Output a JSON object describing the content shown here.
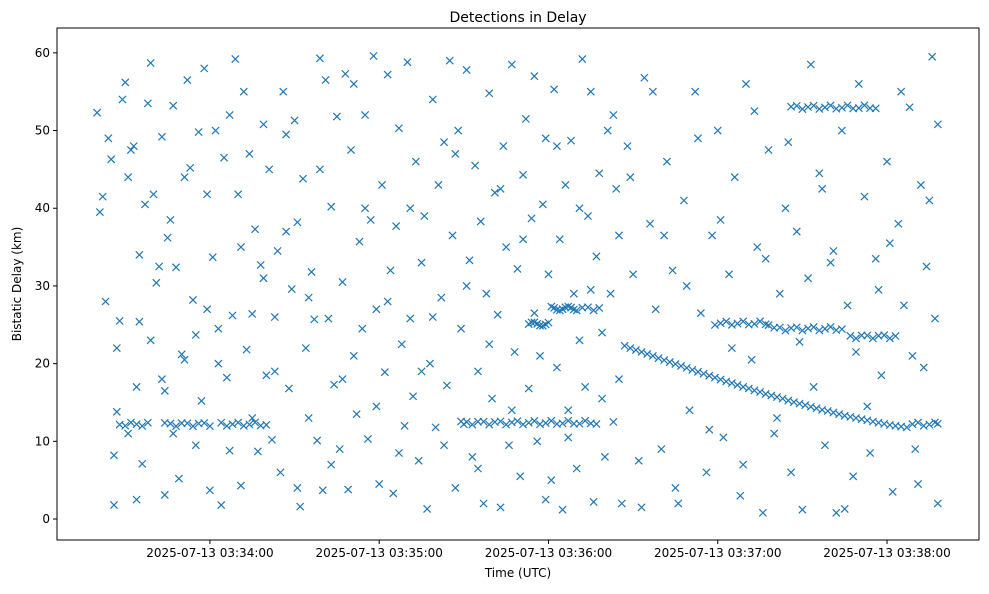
{
  "chart_data": {
    "type": "scatter",
    "title": "Detections in Delay",
    "xlabel": "Time (UTC)",
    "ylabel": "Bistatic Delay (km)",
    "x_units": "seconds after 2025-07-13 03:33:00 UTC",
    "xlim": [
      5.8,
      332.6
    ],
    "ylim": [
      -2.7,
      63.2
    ],
    "xticks": [
      {
        "value": 60,
        "label": "2025-07-13 03:34:00"
      },
      {
        "value": 120,
        "label": "2025-07-13 03:35:00"
      },
      {
        "value": 180,
        "label": "2025-07-13 03:36:00"
      },
      {
        "value": 240,
        "label": "2025-07-13 03:37:00"
      },
      {
        "value": 300,
        "label": "2025-07-13 03:38:00"
      }
    ],
    "yticks": [
      0,
      10,
      20,
      30,
      40,
      50,
      60
    ],
    "grid": false,
    "marker": "x",
    "color": "#1f77b4",
    "tracks": [
      {
        "y": 12.2,
        "x": [
          28,
          30,
          32,
          34,
          36,
          38,
          44,
          46,
          48,
          50,
          52,
          54,
          56,
          58,
          60,
          64,
          66,
          68,
          70,
          72,
          74,
          76,
          78,
          80
        ]
      },
      {
        "y": 12.4,
        "x": [
          149,
          151,
          153,
          155,
          157,
          159,
          161,
          163,
          165,
          167,
          169,
          171,
          173,
          175,
          177,
          179,
          181,
          183,
          185,
          187,
          189,
          191,
          193,
          195,
          197
        ]
      },
      {
        "y": 25.1,
        "x": [
          173,
          174,
          175,
          176,
          177,
          178,
          179,
          180
        ]
      },
      {
        "y": 27.1,
        "x": [
          181,
          182,
          183,
          184,
          185,
          186,
          187,
          188,
          189,
          190,
          192,
          194,
          196,
          198
        ]
      },
      {
        "y": 25.2,
        "x": [
          239,
          241,
          243,
          245,
          247,
          249,
          251,
          253,
          255,
          257,
          258
        ]
      },
      {
        "y": 24.5,
        "x": [
          260,
          262,
          264,
          266,
          268,
          270,
          272,
          274,
          276,
          278,
          280,
          282,
          284
        ]
      },
      {
        "y": 23.5,
        "x": [
          287,
          289,
          291,
          293,
          295,
          297,
          299,
          301,
          303
        ]
      },
      {
        "y": 53.0,
        "x": [
          266,
          268,
          270,
          272,
          274,
          276,
          278,
          280,
          282,
          284,
          286,
          288,
          290,
          292,
          294,
          296
        ]
      },
      {
        "y": 12.2,
        "x": [
          309,
          311,
          313,
          315,
          317,
          318
        ]
      }
    ],
    "curved_track": [
      [
        207,
        22.3
      ],
      [
        209,
        22.0
      ],
      [
        211,
        21.75
      ],
      [
        213,
        21.5
      ],
      [
        215,
        21.24
      ],
      [
        217,
        21.0
      ],
      [
        219,
        20.7
      ],
      [
        221,
        20.45
      ],
      [
        223,
        20.2
      ],
      [
        225,
        19.95
      ],
      [
        227,
        19.7
      ],
      [
        229,
        19.45
      ],
      [
        231,
        19.2
      ],
      [
        233,
        18.95
      ],
      [
        235,
        18.7
      ],
      [
        237,
        18.45
      ],
      [
        239,
        18.2
      ],
      [
        241,
        17.95
      ],
      [
        243,
        17.7
      ],
      [
        245,
        17.5
      ],
      [
        247,
        17.25
      ],
      [
        249,
        17.0
      ],
      [
        251,
        16.8
      ],
      [
        253,
        16.55
      ],
      [
        255,
        16.35
      ],
      [
        257,
        16.1
      ],
      [
        259,
        15.9
      ],
      [
        261,
        15.7
      ],
      [
        263,
        15.5
      ],
      [
        265,
        15.25
      ],
      [
        267,
        15.05
      ],
      [
        269,
        14.85
      ],
      [
        271,
        14.65
      ],
      [
        273,
        14.45
      ],
      [
        275,
        14.25
      ],
      [
        277,
        14.05
      ],
      [
        279,
        13.9
      ],
      [
        281,
        13.7
      ],
      [
        283,
        13.5
      ],
      [
        285,
        13.3
      ],
      [
        287,
        13.15
      ],
      [
        289,
        13.0
      ],
      [
        291,
        12.85
      ],
      [
        293,
        12.7
      ],
      [
        295,
        12.55
      ],
      [
        297,
        12.4
      ],
      [
        299,
        12.25
      ],
      [
        301,
        12.1
      ],
      [
        303,
        12.0
      ],
      [
        305,
        11.9
      ],
      [
        307,
        11.8
      ]
    ],
    "points": [
      [
        20,
        52.3
      ],
      [
        21,
        39.5
      ],
      [
        22,
        41.5
      ],
      [
        23,
        28.0
      ],
      [
        24,
        49.0
      ],
      [
        25,
        46.3
      ],
      [
        26,
        8.2
      ],
      [
        26,
        1.8
      ],
      [
        27,
        13.8
      ],
      [
        28,
        25.5
      ],
      [
        29,
        54.0
      ],
      [
        30,
        56.2
      ],
      [
        31,
        44.0
      ],
      [
        32,
        47.5
      ],
      [
        33,
        48.0
      ],
      [
        34,
        17.0
      ],
      [
        34,
        2.5
      ],
      [
        35,
        25.4
      ],
      [
        36,
        7.1
      ],
      [
        37,
        40.5
      ],
      [
        38,
        53.5
      ],
      [
        39,
        58.7
      ],
      [
        40,
        41.8
      ],
      [
        41,
        30.4
      ],
      [
        42,
        32.5
      ],
      [
        43,
        49.2
      ],
      [
        44,
        16.5
      ],
      [
        44,
        3.1
      ],
      [
        45,
        36.2
      ],
      [
        46,
        38.5
      ],
      [
        47,
        53.2
      ],
      [
        48,
        32.4
      ],
      [
        49,
        5.2
      ],
      [
        50,
        21.2
      ],
      [
        51,
        44.0
      ],
      [
        52,
        56.5
      ],
      [
        53,
        45.2
      ],
      [
        54,
        28.2
      ],
      [
        55,
        23.7
      ],
      [
        56,
        49.8
      ],
      [
        57,
        15.2
      ],
      [
        58,
        58.0
      ],
      [
        59,
        41.8
      ],
      [
        60,
        3.7
      ],
      [
        61,
        33.7
      ],
      [
        62,
        50.0
      ],
      [
        63,
        24.5
      ],
      [
        64,
        1.8
      ],
      [
        65,
        46.5
      ],
      [
        66,
        18.2
      ],
      [
        67,
        8.8
      ],
      [
        68,
        26.2
      ],
      [
        69,
        59.2
      ],
      [
        70,
        41.8
      ],
      [
        71,
        4.3
      ],
      [
        72,
        55.0
      ],
      [
        73,
        21.8
      ],
      [
        74,
        47.0
      ],
      [
        75,
        26.4
      ],
      [
        76,
        37.3
      ],
      [
        77,
        8.7
      ],
      [
        78,
        32.7
      ],
      [
        79,
        50.8
      ],
      [
        80,
        18.5
      ],
      [
        81,
        45.0
      ],
      [
        82,
        10.2
      ],
      [
        83,
        26.0
      ],
      [
        84,
        34.5
      ],
      [
        85,
        6.0
      ],
      [
        86,
        55.0
      ],
      [
        87,
        49.5
      ],
      [
        88,
        16.8
      ],
      [
        89,
        29.6
      ],
      [
        90,
        51.3
      ],
      [
        91,
        38.2
      ],
      [
        92,
        1.6
      ],
      [
        93,
        43.8
      ],
      [
        94,
        22.0
      ],
      [
        95,
        13.0
      ],
      [
        96,
        31.8
      ],
      [
        97,
        25.7
      ],
      [
        98,
        10.1
      ],
      [
        99,
        59.3
      ],
      [
        100,
        3.7
      ],
      [
        101,
        56.5
      ],
      [
        102,
        25.8
      ],
      [
        103,
        40.2
      ],
      [
        104,
        17.3
      ],
      [
        105,
        51.8
      ],
      [
        106,
        9.0
      ],
      [
        107,
        30.5
      ],
      [
        108,
        57.3
      ],
      [
        109,
        3.8
      ],
      [
        110,
        47.5
      ],
      [
        111,
        21.0
      ],
      [
        112,
        13.5
      ],
      [
        113,
        35.7
      ],
      [
        114,
        24.5
      ],
      [
        115,
        52.0
      ],
      [
        116,
        10.3
      ],
      [
        117,
        38.5
      ],
      [
        118,
        59.6
      ],
      [
        119,
        27.0
      ],
      [
        120,
        4.5
      ],
      [
        121,
        43.0
      ],
      [
        122,
        18.9
      ],
      [
        123,
        57.2
      ],
      [
        124,
        32.0
      ],
      [
        125,
        3.3
      ],
      [
        126,
        37.7
      ],
      [
        127,
        50.3
      ],
      [
        128,
        22.5
      ],
      [
        129,
        12.0
      ],
      [
        130,
        58.8
      ],
      [
        131,
        25.8
      ],
      [
        132,
        15.8
      ],
      [
        133,
        46.0
      ],
      [
        134,
        7.5
      ],
      [
        135,
        33.0
      ],
      [
        136,
        39.0
      ],
      [
        137,
        1.3
      ],
      [
        138,
        20.0
      ],
      [
        139,
        54.0
      ],
      [
        140,
        11.8
      ],
      [
        141,
        43.0
      ],
      [
        142,
        28.5
      ],
      [
        143,
        48.5
      ],
      [
        144,
        17.2
      ],
      [
        145,
        59.0
      ],
      [
        146,
        36.5
      ],
      [
        147,
        4.0
      ],
      [
        148,
        50.0
      ],
      [
        149,
        24.5
      ],
      [
        150,
        12.2
      ],
      [
        151,
        57.8
      ],
      [
        152,
        33.3
      ],
      [
        153,
        8.0
      ],
      [
        154,
        45.5
      ],
      [
        155,
        19.0
      ],
      [
        156,
        38.3
      ],
      [
        157,
        2.0
      ],
      [
        158,
        29.0
      ],
      [
        159,
        54.8
      ],
      [
        160,
        15.5
      ],
      [
        161,
        42.0
      ],
      [
        162,
        26.3
      ],
      [
        163,
        1.5
      ],
      [
        164,
        48.0
      ],
      [
        165,
        35.0
      ],
      [
        166,
        9.5
      ],
      [
        167,
        58.5
      ],
      [
        168,
        21.5
      ],
      [
        169,
        32.2
      ],
      [
        170,
        5.5
      ],
      [
        171,
        44.3
      ],
      [
        172,
        51.5
      ],
      [
        173,
        16.8
      ],
      [
        174,
        38.7
      ],
      [
        175,
        57.0
      ],
      [
        176,
        10.0
      ],
      [
        177,
        21.0
      ],
      [
        178,
        40.5
      ],
      [
        179,
        49.0
      ],
      [
        180,
        31.5
      ],
      [
        181,
        5.0
      ],
      [
        182,
        55.3
      ],
      [
        183,
        19.5
      ],
      [
        184,
        36.0
      ],
      [
        185,
        1.2
      ],
      [
        186,
        43.0
      ],
      [
        187,
        14.0
      ],
      [
        188,
        48.7
      ],
      [
        189,
        29.0
      ],
      [
        190,
        6.5
      ],
      [
        191,
        23.0
      ],
      [
        192,
        59.2
      ],
      [
        193,
        17.0
      ],
      [
        194,
        39.0
      ],
      [
        195,
        55.0
      ],
      [
        196,
        2.2
      ],
      [
        197,
        33.8
      ],
      [
        198,
        44.5
      ],
      [
        199,
        24.0
      ],
      [
        200,
        8.0
      ],
      [
        201,
        50.0
      ],
      [
        202,
        29.0
      ],
      [
        203,
        12.5
      ],
      [
        204,
        42.5
      ],
      [
        205,
        36.5
      ],
      [
        206,
        2.0
      ],
      [
        208,
        48.0
      ],
      [
        210,
        31.5
      ],
      [
        212,
        7.5
      ],
      [
        214,
        56.8
      ],
      [
        216,
        38.0
      ],
      [
        218,
        27.0
      ],
      [
        220,
        9.0
      ],
      [
        222,
        46.0
      ],
      [
        224,
        32.0
      ],
      [
        226,
        2.0
      ],
      [
        228,
        41.0
      ],
      [
        230,
        14.0
      ],
      [
        232,
        55.0
      ],
      [
        234,
        26.5
      ],
      [
        236,
        6.0
      ],
      [
        238,
        36.5
      ],
      [
        240,
        50.0
      ],
      [
        242,
        10.5
      ],
      [
        244,
        31.5
      ],
      [
        246,
        44.0
      ],
      [
        248,
        3.0
      ],
      [
        250,
        56.0
      ],
      [
        252,
        20.5
      ],
      [
        254,
        35.0
      ],
      [
        256,
        0.8
      ],
      [
        258,
        47.5
      ],
      [
        260,
        11.0
      ],
      [
        262,
        29.0
      ],
      [
        264,
        40.0
      ],
      [
        266,
        6.0
      ],
      [
        268,
        37.0
      ],
      [
        270,
        1.2
      ],
      [
        272,
        31.0
      ],
      [
        274,
        17.0
      ],
      [
        276,
        44.5
      ],
      [
        278,
        9.5
      ],
      [
        280,
        33.0
      ],
      [
        282,
        0.8
      ],
      [
        284,
        50.0
      ],
      [
        286,
        27.5
      ],
      [
        288,
        5.5
      ],
      [
        290,
        56.0
      ],
      [
        292,
        41.5
      ],
      [
        294,
        8.5
      ],
      [
        296,
        33.5
      ],
      [
        298,
        18.5
      ],
      [
        300,
        46.0
      ],
      [
        302,
        3.5
      ],
      [
        304,
        38.0
      ],
      [
        306,
        27.5
      ],
      [
        308,
        53.0
      ],
      [
        310,
        9.0
      ],
      [
        312,
        43.0
      ],
      [
        314,
        32.5
      ],
      [
        316,
        59.5
      ],
      [
        317,
        25.8
      ],
      [
        318,
        50.8
      ],
      [
        318,
        2.0
      ],
      [
        309,
        21.0
      ],
      [
        313,
        19.5
      ],
      [
        315,
        41.0
      ],
      [
        311,
        4.5
      ],
      [
        305,
        55.0
      ],
      [
        301,
        35.5
      ],
      [
        297,
        29.5
      ],
      [
        293,
        14.5
      ],
      [
        289,
        21.5
      ],
      [
        285,
        1.3
      ],
      [
        281,
        34.5
      ],
      [
        277,
        42.5
      ],
      [
        273,
        58.5
      ],
      [
        269,
        22.8
      ],
      [
        265,
        48.5
      ],
      [
        261,
        13.0
      ],
      [
        257,
        33.5
      ],
      [
        253,
        52.5
      ],
      [
        249,
        7.0
      ],
      [
        245,
        22.0
      ],
      [
        241,
        38.5
      ],
      [
        237,
        11.5
      ],
      [
        233,
        49.0
      ],
      [
        229,
        30.0
      ],
      [
        225,
        4.0
      ],
      [
        221,
        36.5
      ],
      [
        217,
        55.0
      ],
      [
        213,
        1.5
      ],
      [
        209,
        44.0
      ],
      [
        205,
        18.0
      ],
      [
        203,
        52.0
      ],
      [
        199,
        15.5
      ],
      [
        195,
        29.5
      ],
      [
        191,
        40.0
      ],
      [
        187,
        10.5
      ],
      [
        183,
        48.0
      ],
      [
        179,
        2.5
      ],
      [
        175,
        26.5
      ],
      [
        171,
        36.0
      ],
      [
        167,
        14.0
      ],
      [
        163,
        42.5
      ],
      [
        159,
        22.5
      ],
      [
        155,
        6.5
      ],
      [
        151,
        30.0
      ],
      [
        147,
        47.0
      ],
      [
        143,
        9.5
      ],
      [
        139,
        26.0
      ],
      [
        135,
        19.0
      ],
      [
        131,
        40.0
      ],
      [
        127,
        8.5
      ],
      [
        123,
        28.0
      ],
      [
        119,
        14.5
      ],
      [
        115,
        40.0
      ],
      [
        111,
        56.0
      ],
      [
        107,
        18.0
      ],
      [
        103,
        7.0
      ],
      [
        99,
        45.0
      ],
      [
        95,
        28.5
      ],
      [
        91,
        4.0
      ],
      [
        87,
        37.0
      ],
      [
        83,
        19.0
      ],
      [
        79,
        31.0
      ],
      [
        75,
        13.0
      ],
      [
        71,
        35.0
      ],
      [
        67,
        52.0
      ],
      [
        63,
        20.0
      ],
      [
        59,
        27.0
      ],
      [
        55,
        9.5
      ],
      [
        51,
        20.5
      ],
      [
        47,
        11.0
      ],
      [
        43,
        18.0
      ],
      [
        39,
        23.0
      ],
      [
        35,
        34.0
      ],
      [
        31,
        11.0
      ],
      [
        27,
        22.0
      ]
    ]
  }
}
